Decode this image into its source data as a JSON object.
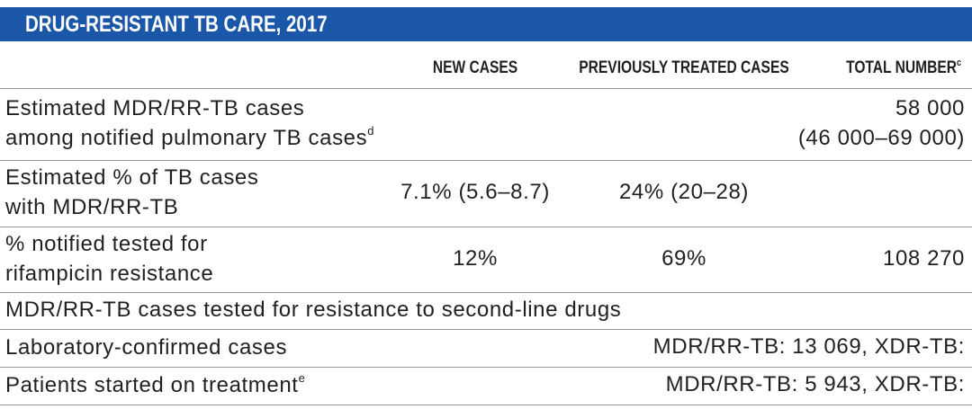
{
  "header": {
    "title": "DRUG-RESISTANT TB CARE, 2017"
  },
  "table": {
    "columns": [
      {
        "text": "NEW CASES"
      },
      {
        "text": "PREVIOUSLY TREATED CASES"
      },
      {
        "text": "TOTAL NUMBER",
        "note": "c"
      }
    ],
    "rows": [
      {
        "label": [
          "Estimated MDR/RR-TB cases",
          "among notified pulmonary TB cases"
        ],
        "note": "d",
        "total": [
          "58 000",
          "(46 000–69 000)"
        ]
      },
      {
        "label": [
          "Estimated % of TB cases",
          "with MDR/RR-TB"
        ],
        "new": "7.1% (5.6–8.7)",
        "previous": "24% (20–28)"
      },
      {
        "label": [
          "% notified tested for",
          "rifampicin resistance"
        ],
        "new": "12%",
        "previous": "69%",
        "total": [
          "108 270"
        ]
      },
      {
        "label": [
          "MDR/RR-TB cases tested for resistance to second-line drugs"
        ]
      },
      {
        "label": [
          "Laboratory-confirmed cases"
        ],
        "total": [
          "MDR/RR-TB: 13 069, XDR-TB:"
        ]
      },
      {
        "label": [
          "Patients started on treatment"
        ],
        "note": "e",
        "total": [
          "MDR/RR-TB: 5 943, XDR-TB:"
        ]
      }
    ]
  }
}
